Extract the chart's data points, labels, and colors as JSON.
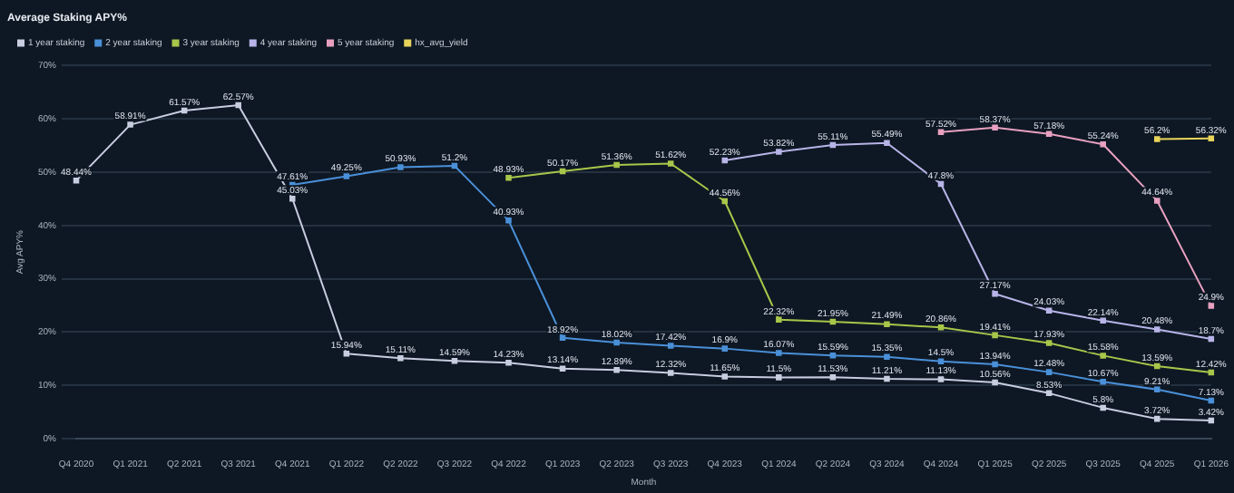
{
  "chart_data": {
    "type": "line",
    "title": "Average Staking APY%",
    "xlabel": "Month",
    "ylabel": "Avg APY%",
    "categories": [
      "Q4 2020",
      "Q1 2021",
      "Q2 2021",
      "Q3 2021",
      "Q4 2021",
      "Q1 2022",
      "Q2 2022",
      "Q3 2022",
      "Q4 2022",
      "Q1 2023",
      "Q2 2023",
      "Q3 2023",
      "Q4 2023",
      "Q1 2024",
      "Q2 2024",
      "Q3 2024",
      "Q4 2024",
      "Q1 2025",
      "Q2 2025",
      "Q3 2025",
      "Q4 2025",
      "Q1 2026"
    ],
    "series": [
      {
        "name": "1 year staking",
        "color": "#c8cde0",
        "values": [
          48.44,
          58.91,
          61.57,
          62.57,
          45.03,
          15.94,
          15.11,
          14.59,
          14.23,
          13.14,
          12.89,
          12.32,
          11.65,
          11.5,
          11.53,
          11.21,
          11.13,
          10.56,
          8.53,
          5.8,
          3.72,
          3.42
        ],
        "value_labels": [
          "48.44%",
          "58.91%",
          "61.57%",
          "62.57%",
          "45.03%",
          "15.94%",
          "15.11%",
          "14.59%",
          "14.23%",
          "13.14%",
          "12.89%",
          "12.32%",
          "11.65%",
          "11.5%",
          "11.53%",
          "11.21%",
          "11.13%",
          "10.56%",
          "8.53%",
          "5.8%",
          "3.72%",
          "3.42%"
        ]
      },
      {
        "name": "2 year staking",
        "color": "#4a90d9",
        "values": [
          null,
          null,
          null,
          null,
          47.61,
          49.25,
          50.93,
          51.2,
          40.93,
          18.92,
          18.02,
          17.42,
          16.9,
          16.07,
          15.59,
          15.35,
          14.5,
          13.94,
          12.48,
          10.67,
          9.21,
          7.13
        ],
        "value_labels": [
          null,
          null,
          null,
          null,
          "47.61%",
          "49.25%",
          "50.93%",
          "51.2%",
          "40.93%",
          "18.92%",
          "18.02%",
          "17.42%",
          "16.9%",
          "16.07%",
          "15.59%",
          "15.35%",
          "14.5%",
          "13.94%",
          "12.48%",
          "10.67%",
          "9.21%",
          "7.13%"
        ]
      },
      {
        "name": "3 year staking",
        "color": "#a8c64a",
        "values": [
          null,
          null,
          null,
          null,
          null,
          null,
          null,
          null,
          48.93,
          50.17,
          51.36,
          51.62,
          44.56,
          22.32,
          21.95,
          21.49,
          20.86,
          19.41,
          17.93,
          15.58,
          13.59,
          12.42
        ],
        "value_labels": [
          null,
          null,
          null,
          null,
          null,
          null,
          null,
          null,
          "48.93%",
          "50.17%",
          "51.36%",
          "51.62%",
          "44.56%",
          "22.32%",
          "21.95%",
          "21.49%",
          "20.86%",
          "19.41%",
          "17.93%",
          "15.58%",
          "13.59%",
          "12.42%"
        ]
      },
      {
        "name": "4 year staking",
        "color": "#b8b4e8",
        "values": [
          null,
          null,
          null,
          null,
          null,
          null,
          null,
          null,
          null,
          null,
          null,
          null,
          52.23,
          53.82,
          55.11,
          55.49,
          47.8,
          27.17,
          24.03,
          22.14,
          20.48,
          18.7
        ],
        "value_labels": [
          null,
          null,
          null,
          null,
          null,
          null,
          null,
          null,
          null,
          null,
          null,
          null,
          "52.23%",
          "53.82%",
          "55.11%",
          "55.49%",
          "47.8%",
          "27.17%",
          "24.03%",
          "22.14%",
          "20.48%",
          "18.7%"
        ]
      },
      {
        "name": "5 year staking",
        "color": "#e8a0c0",
        "values": [
          null,
          null,
          null,
          null,
          null,
          null,
          null,
          null,
          null,
          null,
          null,
          null,
          null,
          null,
          null,
          null,
          57.52,
          58.37,
          57.18,
          55.24,
          44.64,
          24.9
        ],
        "value_labels": [
          null,
          null,
          null,
          null,
          null,
          null,
          null,
          null,
          null,
          null,
          null,
          null,
          null,
          null,
          null,
          null,
          "57.52%",
          "58.37%",
          "57.18%",
          "55.24%",
          "44.64%",
          "24.9%"
        ]
      },
      {
        "name": "hx_avg_yield",
        "color": "#e8d45a",
        "values": [
          null,
          null,
          null,
          null,
          null,
          null,
          null,
          null,
          null,
          null,
          null,
          null,
          null,
          null,
          null,
          null,
          null,
          null,
          null,
          null,
          56.2,
          56.32
        ],
        "value_labels": [
          null,
          null,
          null,
          null,
          null,
          null,
          null,
          null,
          null,
          null,
          null,
          null,
          null,
          null,
          null,
          null,
          null,
          null,
          null,
          null,
          "56.2%",
          "56.32%"
        ]
      }
    ],
    "ylim": [
      0,
      70
    ],
    "yticks": [
      {
        "value": 0,
        "label": "0%"
      },
      {
        "value": 10,
        "label": "10%"
      },
      {
        "value": 20,
        "label": "20%"
      },
      {
        "value": 30,
        "label": "30%"
      },
      {
        "value": 40,
        "label": "40%"
      },
      {
        "value": 50,
        "label": "50%"
      },
      {
        "value": 60,
        "label": "60%"
      },
      {
        "value": 70,
        "label": "70%"
      }
    ],
    "grid": "y",
    "legend": "top left",
    "marker": "square",
    "line_style": "solid"
  }
}
